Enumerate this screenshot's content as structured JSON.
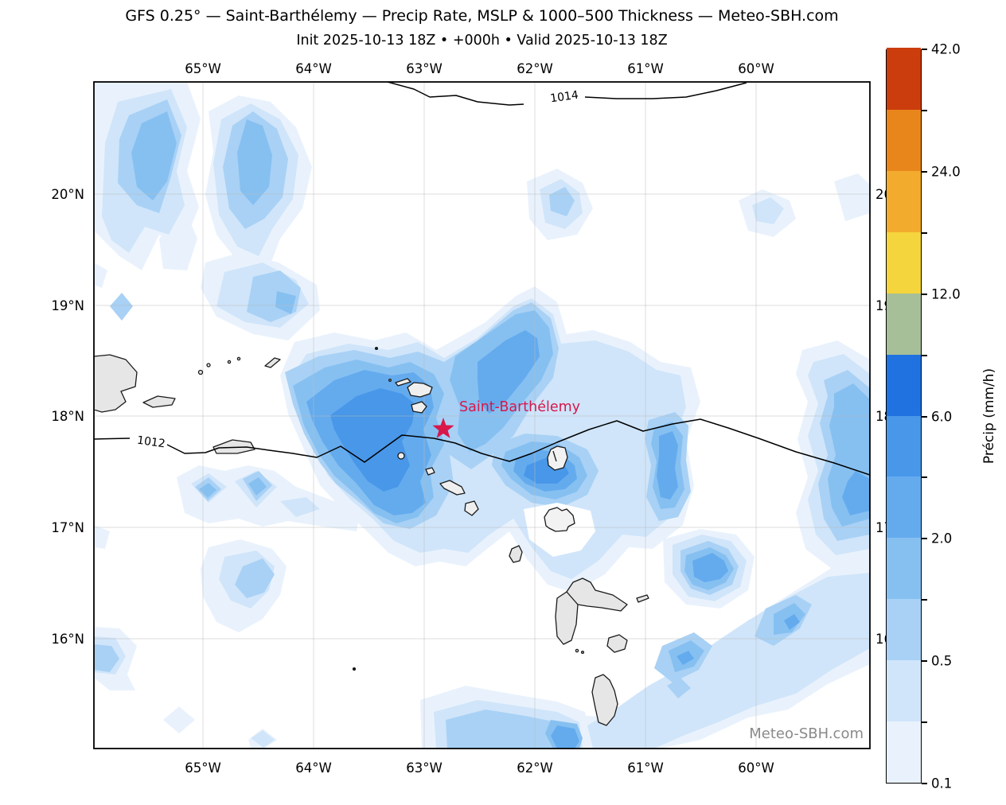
{
  "header": {
    "title": "GFS 0.25° — Saint-Barthélemy — Precip Rate, MSLP & 1000–500 Thickness — Meteo-SBH.com",
    "subtitle": "Init 2025-10-13 18Z • +000h • Valid 2025-10-13 18Z"
  },
  "map": {
    "lon_ticks": [
      "65°W",
      "64°W",
      "63°W",
      "62°W",
      "61°W",
      "60°W"
    ],
    "lat_ticks": [
      "20°N",
      "19°N",
      "18°N",
      "17°N",
      "16°N"
    ],
    "isobar_labels": {
      "high": "1014",
      "low": "1012"
    },
    "marker_label": "Saint-Barthélemy",
    "marker_color": "#d8174a",
    "watermark": "Meteo-SBH.com",
    "land_color": "#e6e6e6",
    "grid_color": "#d9d9d9"
  },
  "chart_data": {
    "type": "heatmap",
    "title": "GFS 0.25° — Saint-Barthélemy — Precip Rate, MSLP & 1000–500 Thickness — Meteo-SBH.com",
    "subtitle": "Init 2025-10-13 18Z • +000h • Valid 2025-10-13 18Z",
    "xlabel_ticks_deg_west": [
      65,
      64,
      63,
      62,
      61,
      60
    ],
    "ylabel_ticks_deg_north": [
      20,
      19,
      18,
      17,
      16
    ],
    "lon_range_deg_west": [
      66,
      59
    ],
    "lat_range_deg_north": [
      15,
      21
    ],
    "marker": {
      "name": "Saint-Barthélemy",
      "lat": 17.9,
      "lon": -62.85
    },
    "isobars_hpa": [
      1012,
      1014
    ],
    "colorbar": {
      "label": "Précip (mm/h)",
      "units": "mm/h",
      "levels": [
        0.1,
        0.25,
        0.5,
        1,
        2,
        4,
        6,
        8,
        12,
        18,
        24,
        30,
        42
      ],
      "colors": [
        "#e9f2fc",
        "#d0e5fa",
        "#a8d1f5",
        "#86c0f1",
        "#64abee",
        "#4897e9",
        "#1f72e0",
        "#a6bf98",
        "#f5d53d",
        "#f2ab2d",
        "#e8861c",
        "#cc3d0e"
      ],
      "ticks": [
        {
          "level": 0.1,
          "label": "0.1"
        },
        {
          "level": 0.5,
          "label": "0.5"
        },
        {
          "level": 2,
          "label": "2.0"
        },
        {
          "level": 6,
          "label": "6.0"
        },
        {
          "level": 12,
          "label": "12.0"
        },
        {
          "level": 24,
          "label": "24.0"
        },
        {
          "level": 42,
          "label": "42.0"
        }
      ]
    }
  }
}
